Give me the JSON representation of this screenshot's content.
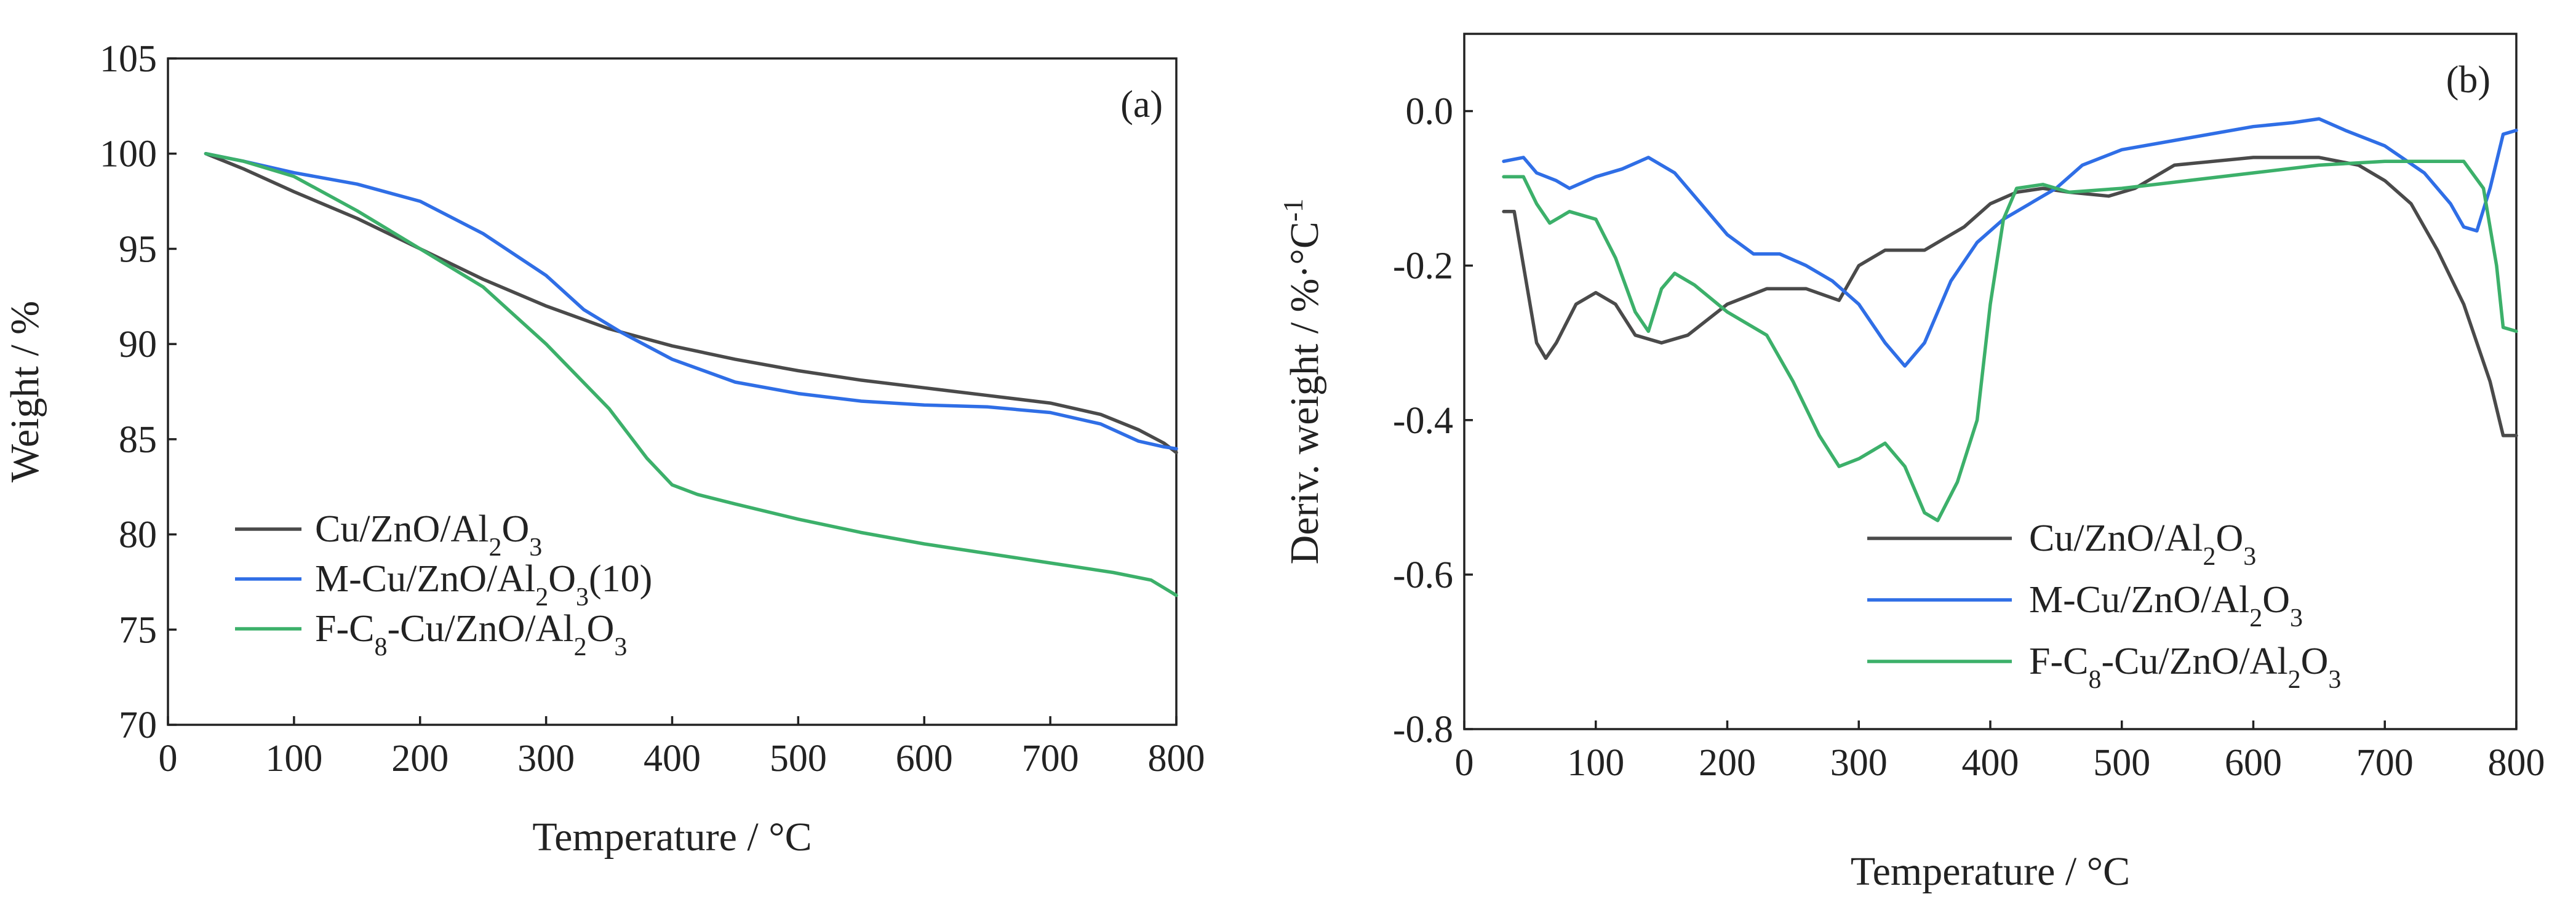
{
  "chart_data": [
    {
      "type": "line",
      "panel_label": "(a)",
      "xlabel": "Temperature / °C",
      "ylabel": "Weight / %",
      "xlim": [
        0,
        800
      ],
      "ylim": [
        70,
        105
      ],
      "xticks": [
        0,
        100,
        200,
        300,
        400,
        500,
        600,
        700,
        800
      ],
      "yticks": [
        70,
        75,
        80,
        85,
        90,
        95,
        100,
        105
      ],
      "legend_position": "bottom-left",
      "colors": [
        "#4a4a4a",
        "#2f6ee6",
        "#3cb06a"
      ],
      "series": [
        {
          "name": "Cu/ZnO/Al2O3",
          "legend": [
            {
              "t": "Cu/ZnO/Al"
            },
            {
              "t": "2",
              "sub": true
            },
            {
              "t": "O"
            },
            {
              "t": "3",
              "sub": true
            }
          ],
          "x": [
            30,
            60,
            100,
            150,
            200,
            250,
            300,
            350,
            400,
            450,
            500,
            550,
            600,
            650,
            700,
            740,
            770,
            790,
            800
          ],
          "y": [
            100,
            99.2,
            98.0,
            96.6,
            95.0,
            93.4,
            92.0,
            90.8,
            89.9,
            89.2,
            88.6,
            88.1,
            87.7,
            87.3,
            86.9,
            86.3,
            85.5,
            84.8,
            84.3
          ]
        },
        {
          "name": "M-Cu/ZnO/Al2O3(10)",
          "legend": [
            {
              "t": "M-Cu/ZnO/Al"
            },
            {
              "t": "2",
              "sub": true
            },
            {
              "t": "O"
            },
            {
              "t": "3",
              "sub": true
            },
            {
              "t": "(10)"
            }
          ],
          "x": [
            30,
            60,
            100,
            150,
            200,
            250,
            300,
            330,
            360,
            400,
            450,
            500,
            550,
            600,
            650,
            700,
            740,
            770,
            790,
            800
          ],
          "y": [
            100,
            99.6,
            99.0,
            98.4,
            97.5,
            95.8,
            93.6,
            91.8,
            90.6,
            89.2,
            88.0,
            87.4,
            87.0,
            86.8,
            86.7,
            86.4,
            85.8,
            84.9,
            84.6,
            84.5
          ]
        },
        {
          "name": "F-C8-Cu/ZnO/Al2O3",
          "legend": [
            {
              "t": "F-C"
            },
            {
              "t": "8",
              "sub": true
            },
            {
              "t": "-Cu/ZnO/Al"
            },
            {
              "t": "2",
              "sub": true
            },
            {
              "t": "O"
            },
            {
              "t": "3",
              "sub": true
            }
          ],
          "x": [
            30,
            60,
            100,
            150,
            200,
            250,
            300,
            350,
            380,
            400,
            420,
            450,
            500,
            550,
            600,
            650,
            700,
            750,
            780,
            790,
            800
          ],
          "y": [
            100,
            99.6,
            98.8,
            97.0,
            95.0,
            93.0,
            90.0,
            86.6,
            84.0,
            82.6,
            82.1,
            81.6,
            80.8,
            80.1,
            79.5,
            79.0,
            78.5,
            78.0,
            77.6,
            77.2,
            76.8
          ]
        }
      ]
    },
    {
      "type": "line",
      "panel_label": "(b)",
      "xlabel": "Temperature / °C",
      "ylabel_parts": [
        {
          "t": "Deriv. weight / %·°C"
        },
        {
          "t": "-1",
          "sup": true
        }
      ],
      "xlim": [
        0,
        800
      ],
      "ylim": [
        -0.8,
        0.1
      ],
      "xticks": [
        0,
        100,
        200,
        300,
        400,
        500,
        600,
        700,
        800
      ],
      "yticks": [
        -0.8,
        -0.6,
        -0.4,
        -0.2,
        0.0
      ],
      "ytick_labels": [
        "-0.8",
        "-0.6",
        "-0.4",
        "-0.2",
        "0.0"
      ],
      "legend_position": "bottom-right",
      "colors": [
        "#4a4a4a",
        "#2f6ee6",
        "#3cb06a"
      ],
      "series": [
        {
          "name": "Cu/ZnO/Al2O3",
          "legend": [
            {
              "t": "Cu/ZnO/Al"
            },
            {
              "t": "2",
              "sub": true
            },
            {
              "t": "O"
            },
            {
              "t": "3",
              "sub": true
            }
          ],
          "x": [
            30,
            38,
            45,
            55,
            62,
            70,
            85,
            100,
            115,
            130,
            150,
            170,
            200,
            230,
            260,
            285,
            300,
            320,
            350,
            380,
            400,
            420,
            440,
            460,
            490,
            510,
            540,
            600,
            650,
            680,
            700,
            720,
            740,
            760,
            780,
            790,
            800
          ],
          "y": [
            -0.13,
            -0.13,
            -0.2,
            -0.3,
            -0.32,
            -0.3,
            -0.25,
            -0.235,
            -0.25,
            -0.29,
            -0.3,
            -0.29,
            -0.25,
            -0.23,
            -0.23,
            -0.245,
            -0.2,
            -0.18,
            -0.18,
            -0.15,
            -0.12,
            -0.105,
            -0.1,
            -0.105,
            -0.11,
            -0.1,
            -0.07,
            -0.06,
            -0.06,
            -0.07,
            -0.09,
            -0.12,
            -0.18,
            -0.25,
            -0.35,
            -0.42,
            -0.42
          ]
        },
        {
          "name": "M-Cu/ZnO/Al2O3",
          "legend": [
            {
              "t": "M-Cu/ZnO/Al"
            },
            {
              "t": "2",
              "sub": true
            },
            {
              "t": "O"
            },
            {
              "t": "3",
              "sub": true
            }
          ],
          "x": [
            30,
            45,
            55,
            70,
            80,
            100,
            120,
            140,
            160,
            180,
            200,
            220,
            240,
            260,
            280,
            300,
            320,
            335,
            350,
            370,
            390,
            410,
            430,
            450,
            470,
            500,
            550,
            600,
            630,
            650,
            670,
            700,
            730,
            750,
            760,
            770,
            780,
            790,
            800
          ],
          "y": [
            -0.065,
            -0.06,
            -0.08,
            -0.09,
            -0.1,
            -0.085,
            -0.075,
            -0.06,
            -0.08,
            -0.12,
            -0.16,
            -0.185,
            -0.185,
            -0.2,
            -0.22,
            -0.25,
            -0.3,
            -0.33,
            -0.3,
            -0.22,
            -0.17,
            -0.14,
            -0.12,
            -0.1,
            -0.07,
            -0.05,
            -0.035,
            -0.02,
            -0.015,
            -0.01,
            -0.025,
            -0.045,
            -0.08,
            -0.12,
            -0.15,
            -0.155,
            -0.1,
            -0.03,
            -0.025
          ]
        },
        {
          "name": "F-C8-Cu/ZnO/Al2O3",
          "legend": [
            {
              "t": "F-C"
            },
            {
              "t": "8",
              "sub": true
            },
            {
              "t": "-Cu/ZnO/Al"
            },
            {
              "t": "2",
              "sub": true
            },
            {
              "t": "O"
            },
            {
              "t": "3",
              "sub": true
            }
          ],
          "x": [
            30,
            45,
            55,
            65,
            80,
            100,
            115,
            130,
            140,
            150,
            160,
            175,
            200,
            230,
            250,
            270,
            285,
            300,
            320,
            335,
            350,
            360,
            375,
            390,
            400,
            410,
            420,
            440,
            460,
            500,
            550,
            600,
            650,
            700,
            730,
            760,
            775,
            785,
            790,
            800
          ],
          "y": [
            -0.085,
            -0.085,
            -0.12,
            -0.145,
            -0.13,
            -0.14,
            -0.19,
            -0.26,
            -0.285,
            -0.23,
            -0.21,
            -0.225,
            -0.26,
            -0.29,
            -0.35,
            -0.42,
            -0.46,
            -0.45,
            -0.43,
            -0.46,
            -0.52,
            -0.53,
            -0.48,
            -0.4,
            -0.25,
            -0.14,
            -0.1,
            -0.095,
            -0.105,
            -0.1,
            -0.09,
            -0.08,
            -0.07,
            -0.065,
            -0.065,
            -0.065,
            -0.1,
            -0.2,
            -0.28,
            -0.285
          ]
        }
      ]
    }
  ]
}
